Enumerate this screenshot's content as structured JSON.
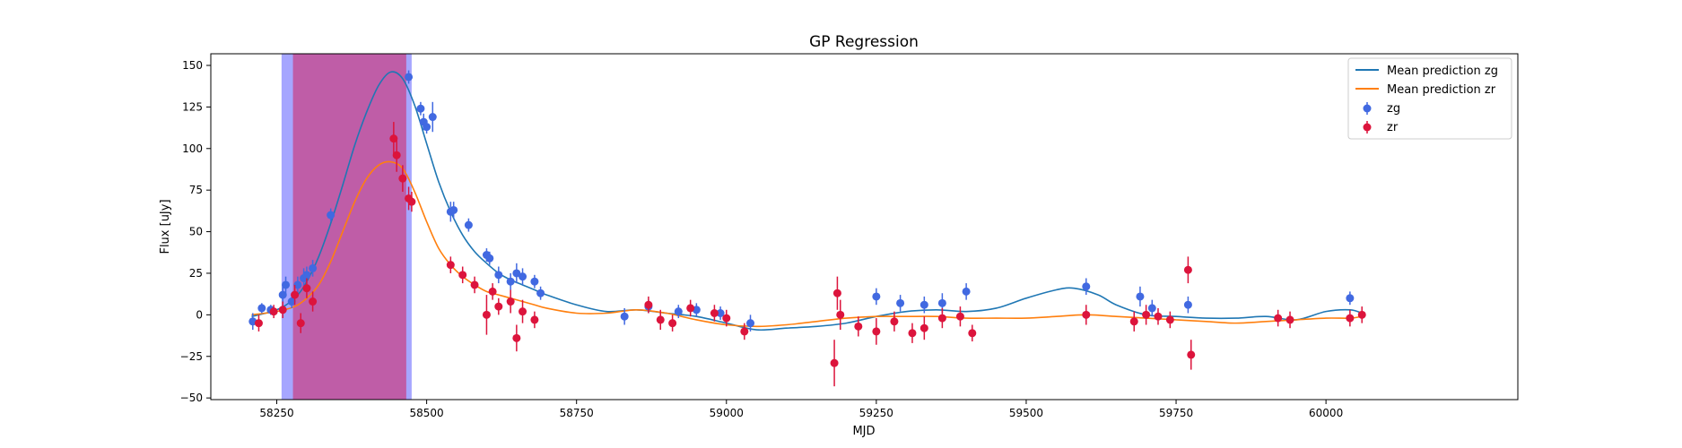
{
  "chart_data": {
    "type": "scatter",
    "title": "GP Regression",
    "xlabel": "MJD",
    "ylabel": "Flux [uJy]",
    "xlim": [
      58140,
      60320
    ],
    "ylim": [
      -51,
      157
    ],
    "x_ticks": [
      58250,
      58500,
      58750,
      59000,
      59250,
      59500,
      59750,
      60000
    ],
    "y_ticks": [
      -50,
      -25,
      0,
      25,
      50,
      75,
      100,
      125,
      150
    ],
    "grid": false,
    "legend": {
      "position": "top-right",
      "entries": [
        "Mean prediction zg",
        "Mean prediction zr",
        "zg",
        "zr"
      ]
    },
    "shaded_regions": [
      {
        "x0": 58258,
        "x1": 58475,
        "color": "#8080ff",
        "alpha": 0.7
      },
      {
        "x0": 58277,
        "x1": 58466,
        "color": "#d3205f",
        "alpha": 0.55
      }
    ],
    "series": [
      {
        "name": "Mean prediction zg",
        "kind": "line",
        "color": "#1f77b4",
        "x": [
          58208,
          58250,
          58280,
          58300,
          58320,
          58340,
          58360,
          58380,
          58400,
          58420,
          58440,
          58460,
          58480,
          58500,
          58520,
          58540,
          58560,
          58580,
          58600,
          58620,
          58640,
          58660,
          58680,
          58700,
          58750,
          58800,
          58850,
          58900,
          58950,
          59000,
          59050,
          59100,
          59150,
          59200,
          59250,
          59300,
          59350,
          59400,
          59450,
          59500,
          59550,
          59580,
          59620,
          59650,
          59700,
          59750,
          59800,
          59850,
          59900,
          59950,
          60000,
          60040,
          60060
        ],
        "y": [
          -1,
          3,
          10,
          20,
          35,
          55,
          78,
          102,
          122,
          138,
          146,
          142,
          126,
          103,
          80,
          62,
          48,
          38,
          31,
          25,
          21,
          18,
          15,
          12,
          6,
          2,
          3,
          1,
          -1,
          -5,
          -9,
          -8,
          -7,
          -5,
          -1,
          2,
          3,
          2,
          4,
          10,
          15,
          16,
          12,
          6,
          0,
          -1,
          -2,
          -2,
          -1,
          -3,
          2,
          3,
          1
        ]
      },
      {
        "name": "Mean prediction zr",
        "kind": "line",
        "color": "#ff7f0e",
        "x": [
          58208,
          58250,
          58280,
          58300,
          58320,
          58340,
          58360,
          58380,
          58400,
          58420,
          58440,
          58460,
          58480,
          58500,
          58520,
          58540,
          58560,
          58580,
          58600,
          58620,
          58640,
          58660,
          58680,
          58700,
          58750,
          58800,
          58850,
          58900,
          58950,
          59000,
          59050,
          59100,
          59150,
          59200,
          59250,
          59300,
          59350,
          59400,
          59450,
          59500,
          59550,
          59600,
          59650,
          59700,
          59750,
          59800,
          59850,
          59900,
          59950,
          60000,
          60040,
          60060
        ],
        "y": [
          0,
          2,
          5,
          10,
          18,
          32,
          50,
          68,
          82,
          90,
          92,
          88,
          74,
          56,
          40,
          30,
          23,
          18,
          14,
          12,
          10,
          8,
          6,
          4,
          1,
          1,
          3,
          1,
          -3,
          -6,
          -7,
          -6,
          -4,
          -2,
          -1,
          -1,
          -1,
          -2,
          -2,
          -2,
          -1,
          0,
          -1,
          -2,
          -3,
          -4,
          -5,
          -4,
          -3,
          -2,
          -2,
          -1
        ]
      },
      {
        "name": "zg",
        "kind": "errorbar",
        "color": "#4169e1",
        "x": [
          58210,
          58225,
          58240,
          58260,
          58265,
          58275,
          58285,
          58295,
          58300,
          58310,
          58340,
          58470,
          58490,
          58495,
          58500,
          58510,
          58540,
          58545,
          58570,
          58600,
          58605,
          58620,
          58640,
          58650,
          58660,
          58680,
          58690,
          58830,
          58870,
          58920,
          58950,
          58990,
          59040,
          59250,
          59290,
          59330,
          59360,
          59400,
          59600,
          59690,
          59710,
          59770,
          60040
        ],
        "y": [
          -4,
          4,
          3,
          12,
          18,
          8,
          18,
          22,
          24,
          28,
          60,
          143,
          124,
          116,
          113,
          119,
          62,
          63,
          54,
          36,
          34,
          24,
          20,
          25,
          23,
          20,
          13,
          -1,
          5,
          2,
          3,
          1,
          -5,
          11,
          7,
          6,
          7,
          14,
          17,
          11,
          4,
          6,
          10
        ],
        "err": [
          5,
          3,
          3,
          5,
          5,
          4,
          5,
          6,
          5,
          5,
          4,
          4,
          4,
          5,
          4,
          9,
          6,
          5,
          4,
          4,
          4,
          5,
          5,
          6,
          5,
          4,
          4,
          5,
          4,
          4,
          4,
          4,
          5,
          5,
          5,
          5,
          6,
          5,
          5,
          6,
          5,
          5,
          4
        ]
      },
      {
        "name": "zr",
        "kind": "errorbar",
        "color": "#dc143c",
        "x": [
          58220,
          58245,
          58260,
          58280,
          58290,
          58300,
          58310,
          58445,
          58450,
          58460,
          58470,
          58475,
          58540,
          58560,
          58580,
          58600,
          58610,
          58620,
          58640,
          58650,
          58660,
          58680,
          58870,
          58890,
          58910,
          58940,
          58980,
          59000,
          59030,
          59180,
          59185,
          59190,
          59220,
          59250,
          59280,
          59310,
          59330,
          59360,
          59390,
          59410,
          59600,
          59680,
          59700,
          59720,
          59740,
          59770,
          59775,
          59920,
          59940,
          60040,
          60060
        ],
        "y": [
          -5,
          2,
          3,
          12,
          -5,
          16,
          8,
          106,
          96,
          82,
          70,
          68,
          30,
          24,
          18,
          0,
          14,
          5,
          8,
          -14,
          2,
          -3,
          6,
          -3,
          -5,
          4,
          1,
          -2,
          -10,
          -29,
          13,
          0,
          -7,
          -10,
          -4,
          -11,
          -8,
          -2,
          -1,
          -11,
          0,
          -4,
          0,
          -1,
          -3,
          27,
          -24,
          -2,
          -3,
          -2,
          0
        ],
        "err": [
          5,
          4,
          5,
          6,
          6,
          6,
          6,
          10,
          10,
          8,
          7,
          6,
          5,
          5,
          5,
          12,
          5,
          5,
          7,
          8,
          7,
          5,
          5,
          6,
          5,
          5,
          5,
          5,
          5,
          14,
          10,
          9,
          6,
          8,
          6,
          6,
          7,
          6,
          6,
          5,
          6,
          6,
          6,
          5,
          5,
          8,
          9,
          5,
          5,
          5,
          5
        ]
      }
    ]
  }
}
